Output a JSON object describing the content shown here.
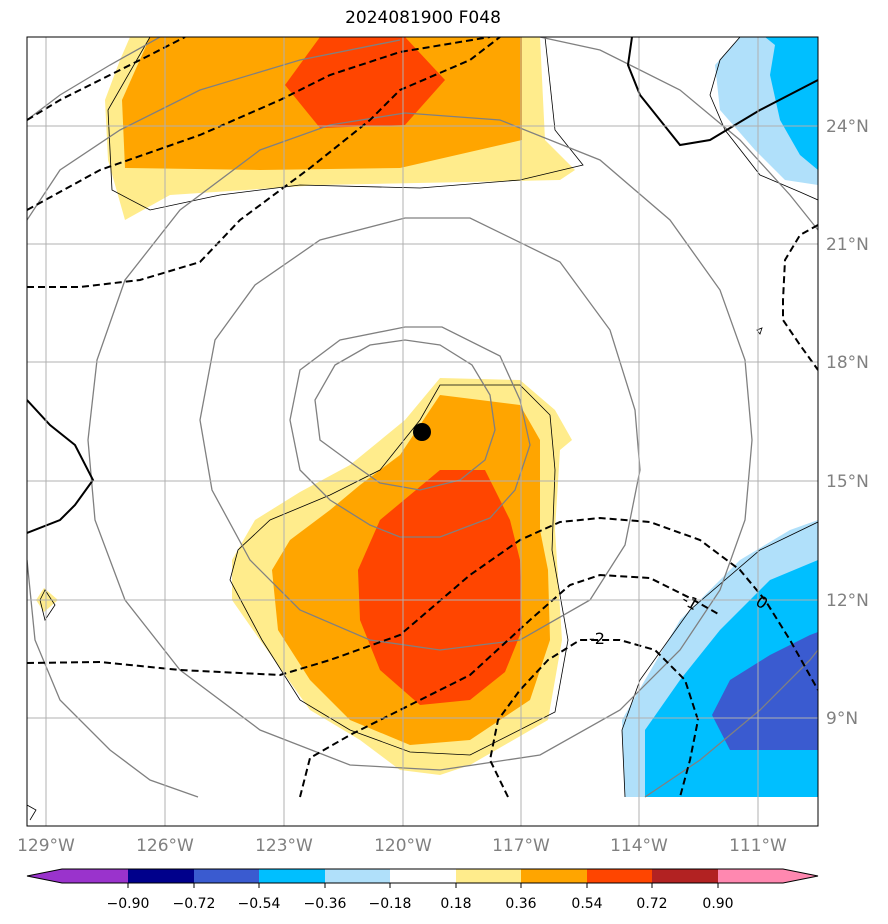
{
  "title": "2024081900 F048",
  "map": {
    "lon_labels": [
      "129°W",
      "126°W",
      "123°W",
      "120°W",
      "117°W",
      "114°W",
      "111°W"
    ],
    "lat_labels": [
      "24°N",
      "21°N",
      "18°N",
      "15°N",
      "12°N",
      "9°N"
    ],
    "contour_labels": [
      "0",
      "-1",
      "-2"
    ],
    "center_marker": {
      "lon": -119.5,
      "lat": 16.2
    }
  },
  "colorbar": {
    "tick_labels": [
      "−0.90",
      "−0.72",
      "−0.54",
      "−0.36",
      "−0.18",
      "0.18",
      "0.36",
      "0.54",
      "0.72",
      "0.90"
    ],
    "colors": [
      "#9a33cc",
      "#00008b",
      "#3a5bd0",
      "#00bfff",
      "#b0e0fa",
      "#ffffff",
      "#ffec8c",
      "#ffa500",
      "#ff4500",
      "#b22222",
      "#ff88b0"
    ]
  }
}
